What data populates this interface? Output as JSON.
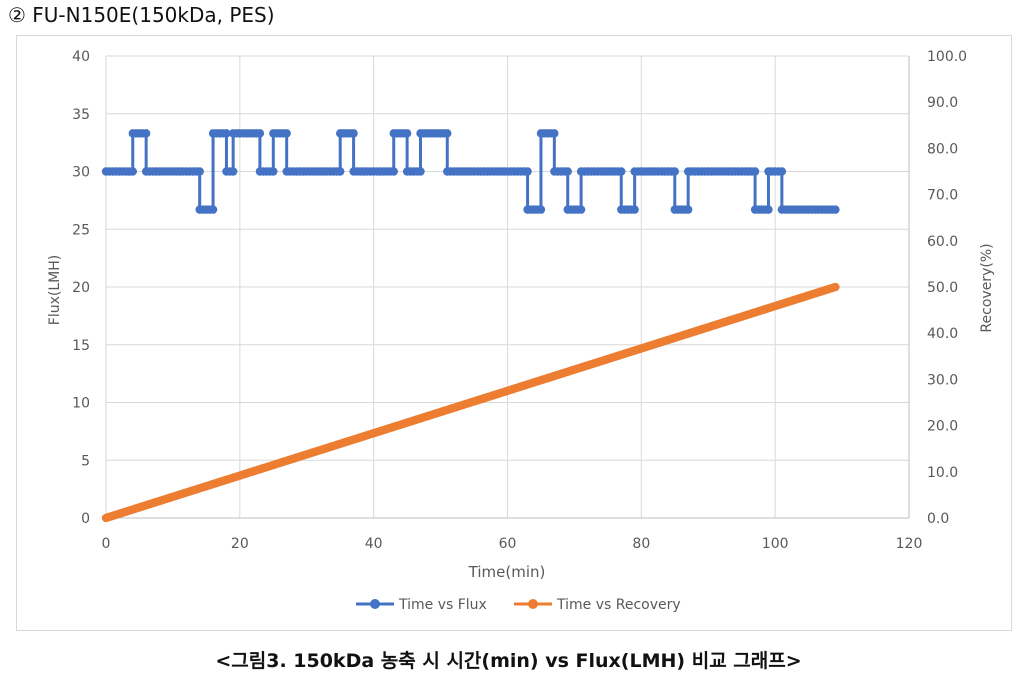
{
  "heading": "② FU-N150E(150kDa, PES)",
  "caption": "<그림3. 150kDa 농축 시 시간(min) vs Flux(LMH) 비교 그래프>",
  "chart_data": {
    "type": "scatter-line",
    "title": "",
    "xlabel": "Time(min)",
    "ylabel": "Flux(LMH)",
    "y2label": "Recovery(%)",
    "xlim": [
      0,
      120
    ],
    "ylim": [
      0,
      40
    ],
    "y2lim": [
      0,
      100
    ],
    "x_ticks": [
      "0",
      "20",
      "40",
      "60",
      "80",
      "100",
      "120"
    ],
    "y_ticks": [
      "0",
      "5",
      "10",
      "15",
      "20",
      "25",
      "30",
      "35",
      "40"
    ],
    "y2_ticks": [
      "0.0",
      "10.0",
      "20.0",
      "30.0",
      "40.0",
      "50.0",
      "60.0",
      "70.0",
      "80.0",
      "90.0",
      "100.0"
    ],
    "grid": true,
    "legend_position": "bottom",
    "series": [
      {
        "name": "Time vs Flux",
        "axis": "left",
        "color": "#4472C4",
        "segments": [
          [
            0,
            30
          ],
          [
            4,
            30
          ],
          [
            4,
            33.3
          ],
          [
            6,
            33.3
          ],
          [
            6,
            30
          ],
          [
            14,
            30
          ],
          [
            14,
            26.7
          ],
          [
            16,
            26.7
          ],
          [
            16,
            33.3
          ],
          [
            18,
            33.3
          ],
          [
            18,
            30
          ],
          [
            19,
            30
          ],
          [
            19,
            33.3
          ],
          [
            23,
            33.3
          ],
          [
            23,
            30
          ],
          [
            25,
            30
          ],
          [
            25,
            33.3
          ],
          [
            27,
            33.3
          ],
          [
            27,
            30
          ],
          [
            35,
            30
          ],
          [
            35,
            33.3
          ],
          [
            37,
            33.3
          ],
          [
            37,
            30
          ],
          [
            43,
            30
          ],
          [
            43,
            33.3
          ],
          [
            45,
            33.3
          ],
          [
            45,
            30
          ],
          [
            47,
            30
          ],
          [
            47,
            33.3
          ],
          [
            51,
            33.3
          ],
          [
            51,
            30
          ],
          [
            63,
            30
          ],
          [
            63,
            26.7
          ],
          [
            65,
            26.7
          ],
          [
            65,
            33.3
          ],
          [
            67,
            33.3
          ],
          [
            67,
            30
          ],
          [
            69,
            30
          ],
          [
            69,
            26.7
          ],
          [
            71,
            26.7
          ],
          [
            71,
            30
          ],
          [
            77,
            30
          ],
          [
            77,
            26.7
          ],
          [
            79,
            26.7
          ],
          [
            79,
            30
          ],
          [
            85,
            30
          ],
          [
            85,
            26.7
          ],
          [
            87,
            26.7
          ],
          [
            87,
            30
          ],
          [
            97,
            30
          ],
          [
            97,
            26.7
          ],
          [
            99,
            26.7
          ],
          [
            99,
            30
          ],
          [
            101,
            30
          ],
          [
            101,
            26.7
          ],
          [
            109,
            26.7
          ]
        ]
      },
      {
        "name": "Time vs Recovery",
        "axis": "right",
        "color": "#ED7D31",
        "x_start": 0,
        "x_end": 109,
        "y_start": 0,
        "y_end": 50
      }
    ]
  }
}
